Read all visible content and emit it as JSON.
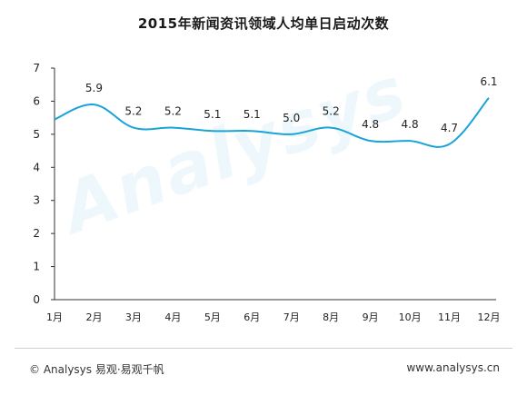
{
  "chart_data": {
    "type": "line",
    "title": "2015年新闻资讯领域人均单日启动次数",
    "categories": [
      "1月",
      "2月",
      "3月",
      "4月",
      "5月",
      "6月",
      "7月",
      "8月",
      "9月",
      "10月",
      "11月",
      "12月"
    ],
    "series": [
      {
        "values": [
          5.45,
          5.9,
          5.2,
          5.2,
          5.1,
          5.1,
          5.0,
          5.2,
          4.8,
          4.8,
          4.7,
          6.1
        ],
        "labels": [
          "",
          "5.9",
          "5.2",
          "5.2",
          "5.1",
          "5.1",
          "5.0",
          "5.2",
          "4.8",
          "4.8",
          "4.7",
          "6.1"
        ]
      }
    ],
    "ylim": [
      0,
      7
    ],
    "yticks": [
      "0",
      "1",
      "2",
      "3",
      "4",
      "5",
      "6",
      "7"
    ],
    "grid": false,
    "colors": {
      "line": "#1aa3d8"
    }
  },
  "watermark": "Analysys",
  "footer": {
    "left": "© Analysys 易观·易观千帆",
    "right": "www.analysys.cn"
  }
}
